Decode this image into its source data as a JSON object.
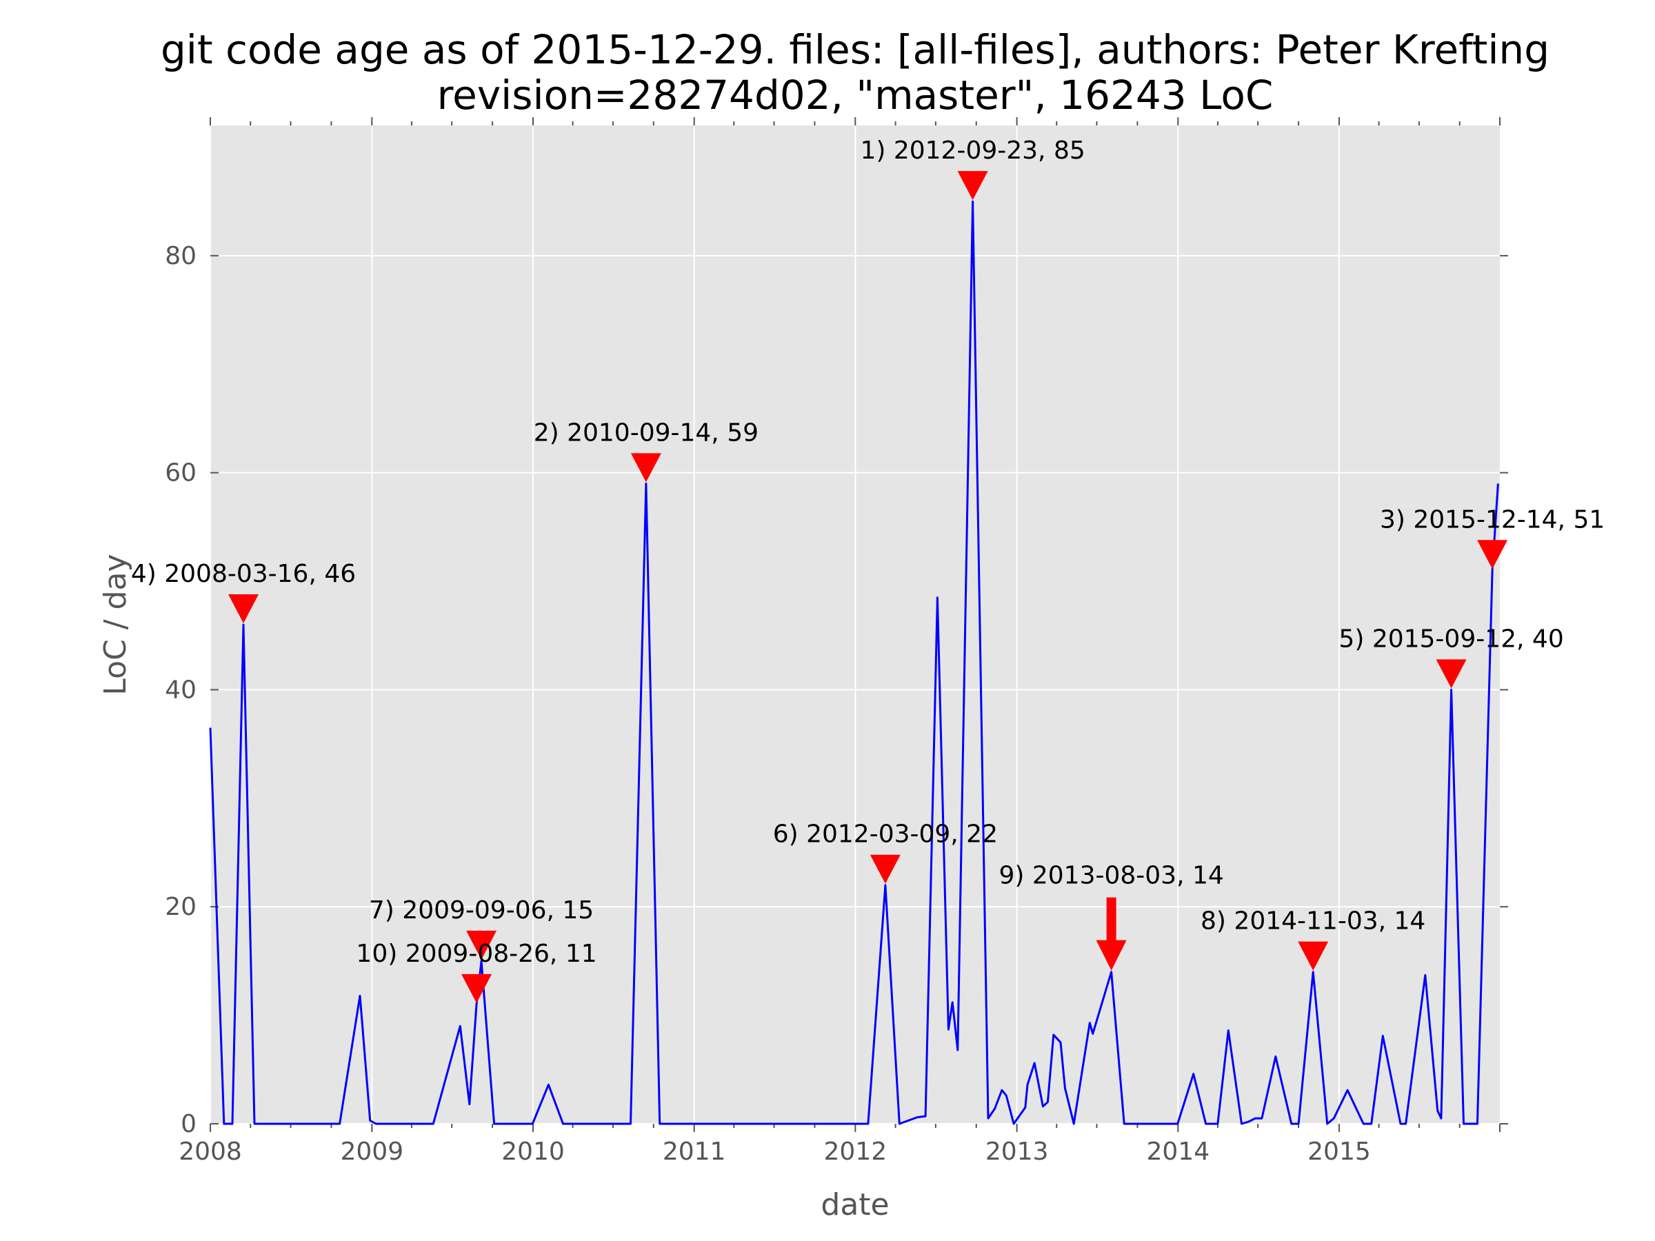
{
  "chart_data": {
    "type": "line",
    "title": "git code age as of 2015-12-29. files: [all-files], authors: Peter Krefting",
    "subtitle": "revision=28274d02, \"master\", 16243 LoC",
    "xlabel": "date",
    "ylabel": "LoC / day",
    "xlim": [
      "2008-01-01",
      "2015-12-31"
    ],
    "ylim": [
      0,
      92
    ],
    "grid": true,
    "x_ticks": [
      "2008",
      "2009",
      "2010",
      "2011",
      "2012",
      "2013",
      "2014",
      "2015"
    ],
    "y_ticks": [
      "0",
      "20",
      "40",
      "60",
      "80"
    ],
    "series": [
      {
        "color": "#0000ff",
        "points": [
          [
            "2008-01-01",
            36.5
          ],
          [
            "2008-02-01",
            0
          ],
          [
            "2008-02-20",
            0
          ],
          [
            "2008-03-16",
            46
          ],
          [
            "2008-04-10",
            0
          ],
          [
            "2008-10-20",
            0
          ],
          [
            "2008-12-05",
            11.8
          ],
          [
            "2008-12-28",
            0.3
          ],
          [
            "2009-01-10",
            0
          ],
          [
            "2009-05-20",
            0
          ],
          [
            "2009-07-20",
            9
          ],
          [
            "2009-08-10",
            1.8
          ],
          [
            "2009-08-26",
            11
          ],
          [
            "2009-09-06",
            15
          ],
          [
            "2009-10-05",
            0
          ],
          [
            "2009-12-31",
            0
          ],
          [
            "2010-02-05",
            3.6
          ],
          [
            "2010-03-10",
            0
          ],
          [
            "2010-08-10",
            0
          ],
          [
            "2010-09-14",
            59
          ],
          [
            "2010-10-15",
            0
          ],
          [
            "2012-01-30",
            0
          ],
          [
            "2012-03-09",
            22
          ],
          [
            "2012-04-10",
            0
          ],
          [
            "2012-05-20",
            0.6
          ],
          [
            "2012-06-08",
            0.7
          ],
          [
            "2012-07-05",
            48.5
          ],
          [
            "2012-07-30",
            8.7
          ],
          [
            "2012-08-08",
            11.2
          ],
          [
            "2012-08-20",
            6.8
          ],
          [
            "2012-09-23",
            85
          ],
          [
            "2012-10-28",
            0.5
          ],
          [
            "2012-11-12",
            1.4
          ],
          [
            "2012-11-28",
            3.1
          ],
          [
            "2012-12-08",
            2.6
          ],
          [
            "2012-12-25",
            0
          ],
          [
            "2013-01-20",
            1.5
          ],
          [
            "2013-01-25",
            3.6
          ],
          [
            "2013-02-10",
            5.6
          ],
          [
            "2013-03-01",
            1.6
          ],
          [
            "2013-03-12",
            2
          ],
          [
            "2013-03-25",
            8.2
          ],
          [
            "2013-04-10",
            7.5
          ],
          [
            "2013-04-20",
            3.3
          ],
          [
            "2013-05-10",
            0
          ],
          [
            "2013-06-15",
            9.3
          ],
          [
            "2013-06-22",
            8.3
          ],
          [
            "2013-08-03",
            14
          ],
          [
            "2013-09-01",
            0
          ],
          [
            "2013-12-31",
            0
          ],
          [
            "2014-02-05",
            4.6
          ],
          [
            "2014-03-05",
            0
          ],
          [
            "2014-04-01",
            0
          ],
          [
            "2014-04-25",
            8.6
          ],
          [
            "2014-05-25",
            0
          ],
          [
            "2014-06-10",
            0.2
          ],
          [
            "2014-06-25",
            0.5
          ],
          [
            "2014-07-10",
            0.5
          ],
          [
            "2014-08-10",
            6.2
          ],
          [
            "2014-09-15",
            0
          ],
          [
            "2014-10-01",
            0
          ],
          [
            "2014-11-03",
            14
          ],
          [
            "2014-12-05",
            0
          ],
          [
            "2014-12-20",
            0.5
          ],
          [
            "2015-01-20",
            3.1
          ],
          [
            "2015-02-25",
            0
          ],
          [
            "2015-03-15",
            0
          ],
          [
            "2015-04-10",
            8.1
          ],
          [
            "2015-05-20",
            0
          ],
          [
            "2015-06-01",
            0
          ],
          [
            "2015-07-15",
            13.7
          ],
          [
            "2015-08-12",
            1.2
          ],
          [
            "2015-08-20",
            0.5
          ],
          [
            "2015-09-12",
            40
          ],
          [
            "2015-10-10",
            0
          ],
          [
            "2015-11-10",
            0
          ],
          [
            "2015-12-14",
            51
          ],
          [
            "2015-12-27",
            59
          ]
        ]
      }
    ],
    "annotations": [
      {
        "label": "1) 2012-09-23, 85",
        "x": "2012-09-23",
        "y": 85,
        "marker": "triangle"
      },
      {
        "label": "2) 2010-09-14, 59",
        "x": "2010-09-14",
        "y": 59,
        "marker": "triangle"
      },
      {
        "label": "3) 2015-12-14, 51",
        "x": "2015-12-14",
        "y": 51,
        "marker": "triangle"
      },
      {
        "label": "4) 2008-03-16, 46",
        "x": "2008-03-16",
        "y": 46,
        "marker": "triangle"
      },
      {
        "label": "5) 2015-09-12, 40",
        "x": "2015-09-12",
        "y": 40,
        "marker": "triangle"
      },
      {
        "label": "6) 2012-03-09, 22",
        "x": "2012-03-09",
        "y": 22,
        "marker": "triangle"
      },
      {
        "label": "7) 2009-09-06, 15",
        "x": "2009-09-06",
        "y": 15,
        "marker": "triangle"
      },
      {
        "label": "8) 2014-11-03, 14",
        "x": "2014-11-03",
        "y": 14,
        "marker": "triangle"
      },
      {
        "label": "9) 2013-08-03, 14",
        "x": "2013-08-03",
        "y": 14,
        "marker": "arrow"
      },
      {
        "label": "10) 2009-08-26, 11",
        "x": "2009-08-26",
        "y": 11,
        "marker": "triangle"
      }
    ],
    "colors": {
      "background": "#e5e5e5",
      "grid": "#ffffff",
      "line": "#0000ff",
      "marker": "#ff0000"
    }
  }
}
